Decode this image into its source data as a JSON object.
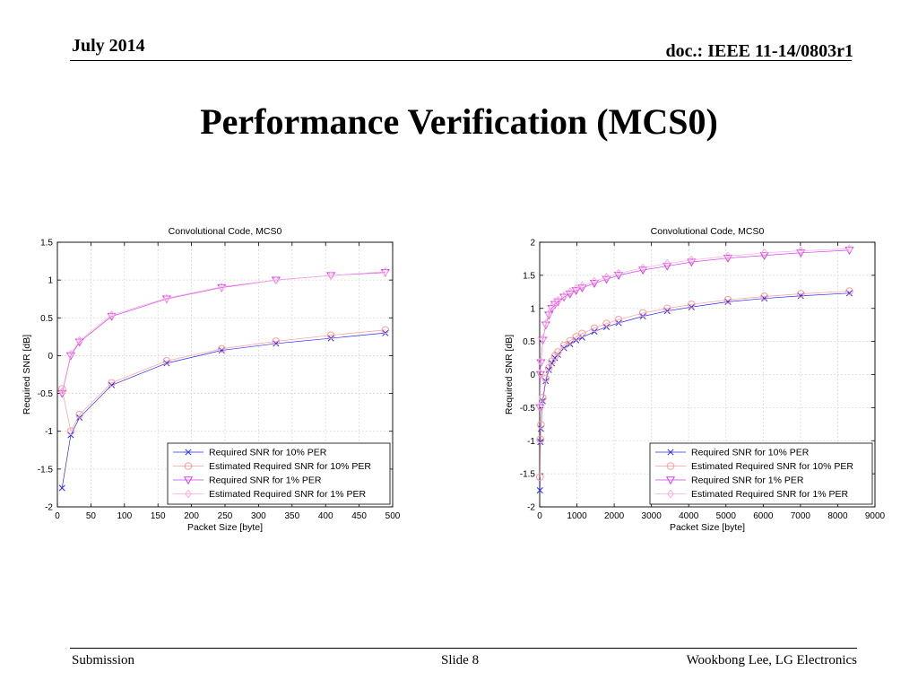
{
  "header": {
    "date": "July 2014",
    "doc": "doc.: IEEE 11-14/0803r1"
  },
  "slide_title": "Performance Verification (MCS0)",
  "footer": {
    "left": "Submission",
    "center": "Slide 8",
    "right": "Wookbong Lee, LG Electronics"
  },
  "colors": {
    "blue": "#2a2aff",
    "red": "#ff9a9a",
    "magenta": "#cc44ee",
    "pink": "#ffaadd",
    "grid": "#d8d8d8"
  },
  "chart_data": [
    {
      "type": "line",
      "title": "Convolutional Code, MCS0",
      "xlabel": "Packet Size [byte]",
      "ylabel": "Required SNR [dB]",
      "xlim": [
        0,
        500
      ],
      "ylim": [
        -2,
        1.5
      ],
      "xticks": [
        0,
        50,
        100,
        150,
        200,
        250,
        300,
        350,
        400,
        450,
        500
      ],
      "yticks": [
        -2,
        -1.5,
        -1,
        -0.5,
        0,
        0.5,
        1,
        1.5
      ],
      "grid": true,
      "legend_position": "bottom-right",
      "series": [
        {
          "name": "Required SNR for 10% PER",
          "marker": "x",
          "color": "#2a2aff",
          "x": [
            7,
            20,
            33,
            81,
            163,
            245,
            326,
            408,
            489
          ],
          "y": [
            -1.75,
            -1.05,
            -0.82,
            -0.39,
            -0.1,
            0.07,
            0.16,
            0.23,
            0.3
          ]
        },
        {
          "name": "Estimated Required SNR for 10% PER",
          "marker": "o",
          "color": "#ff9a9a",
          "x": [
            7,
            20,
            33,
            81,
            163,
            245,
            326,
            408,
            489
          ],
          "y": [
            -0.44,
            -1.0,
            -0.78,
            -0.36,
            -0.07,
            0.09,
            0.19,
            0.27,
            0.34
          ]
        },
        {
          "name": "Required SNR for 1% PER",
          "marker": "v",
          "color": "#cc44ee",
          "x": [
            7,
            20,
            33,
            81,
            163,
            245,
            326,
            408,
            489
          ],
          "y": [
            -0.5,
            0.0,
            0.18,
            0.52,
            0.75,
            0.9,
            1.0,
            1.06,
            1.1
          ]
        },
        {
          "name": "Estimated Required SNR for 1% PER",
          "marker": "d",
          "color": "#ffaadd",
          "x": [
            7,
            20,
            33,
            81,
            163,
            245,
            326,
            408,
            489
          ],
          "y": [
            -0.48,
            0.02,
            0.2,
            0.54,
            0.76,
            0.91,
            1.0,
            1.06,
            1.11
          ]
        }
      ]
    },
    {
      "type": "line",
      "title": "Convolutional Code, MCS0",
      "xlabel": "Packet Size [byte]",
      "ylabel": "Required SNR [dB]",
      "xlim": [
        0,
        9000
      ],
      "ylim": [
        -2,
        2
      ],
      "xticks": [
        0,
        1000,
        2000,
        3000,
        4000,
        5000,
        6000,
        7000,
        8000,
        9000
      ],
      "yticks": [
        -2,
        -1.5,
        -1,
        -0.5,
        0,
        0.5,
        1,
        1.5,
        2
      ],
      "grid": true,
      "legend_position": "bottom-right",
      "series": [
        {
          "name": "Required SNR for 10% PER",
          "marker": "x",
          "color": "#2a2aff",
          "x": [
            7,
            20,
            33,
            81,
            163,
            245,
            326,
            408,
            489,
            652,
            815,
            978,
            1141,
            1467,
            1793,
            2119,
            2771,
            3423,
            4075,
            5053,
            6031,
            7009,
            8313
          ],
          "y": [
            -1.75,
            -1.02,
            -0.82,
            -0.4,
            -0.1,
            0.07,
            0.17,
            0.25,
            0.3,
            0.4,
            0.46,
            0.52,
            0.56,
            0.65,
            0.72,
            0.78,
            0.88,
            0.96,
            1.02,
            1.1,
            1.15,
            1.19,
            1.23
          ]
        },
        {
          "name": "Estimated Required SNR for 10% PER",
          "marker": "o",
          "color": "#ff9a9a",
          "x": [
            7,
            20,
            33,
            81,
            163,
            245,
            326,
            408,
            489,
            652,
            815,
            978,
            1141,
            1467,
            1793,
            2119,
            2771,
            3423,
            4075,
            5053,
            6031,
            7009,
            8313
          ],
          "y": [
            -1.55,
            -0.98,
            -0.76,
            -0.35,
            -0.06,
            0.1,
            0.2,
            0.28,
            0.34,
            0.44,
            0.51,
            0.57,
            0.62,
            0.7,
            0.77,
            0.83,
            0.93,
            1.0,
            1.06,
            1.13,
            1.18,
            1.22,
            1.26
          ]
        },
        {
          "name": "Required SNR for 1% PER",
          "marker": "v",
          "color": "#cc44ee",
          "x": [
            7,
            20,
            33,
            81,
            163,
            245,
            326,
            408,
            489,
            652,
            815,
            978,
            1141,
            1467,
            1793,
            2119,
            2771,
            3423,
            4075,
            5053,
            6031,
            7009,
            8313
          ],
          "y": [
            -0.5,
            0.0,
            0.18,
            0.52,
            0.75,
            0.9,
            1.0,
            1.06,
            1.1,
            1.17,
            1.22,
            1.27,
            1.31,
            1.38,
            1.44,
            1.5,
            1.58,
            1.64,
            1.7,
            1.76,
            1.8,
            1.84,
            1.88
          ]
        },
        {
          "name": "Estimated Required SNR for 1% PER",
          "marker": "d",
          "color": "#ffaadd",
          "x": [
            7,
            20,
            33,
            81,
            163,
            245,
            326,
            408,
            489,
            652,
            815,
            978,
            1141,
            1467,
            1793,
            2119,
            2771,
            3423,
            4075,
            5053,
            6031,
            7009,
            8313
          ],
          "y": [
            -0.48,
            0.02,
            0.2,
            0.54,
            0.77,
            0.92,
            1.02,
            1.08,
            1.12,
            1.19,
            1.25,
            1.3,
            1.34,
            1.41,
            1.47,
            1.53,
            1.61,
            1.68,
            1.73,
            1.79,
            1.84,
            1.87,
            1.9
          ]
        }
      ]
    }
  ]
}
